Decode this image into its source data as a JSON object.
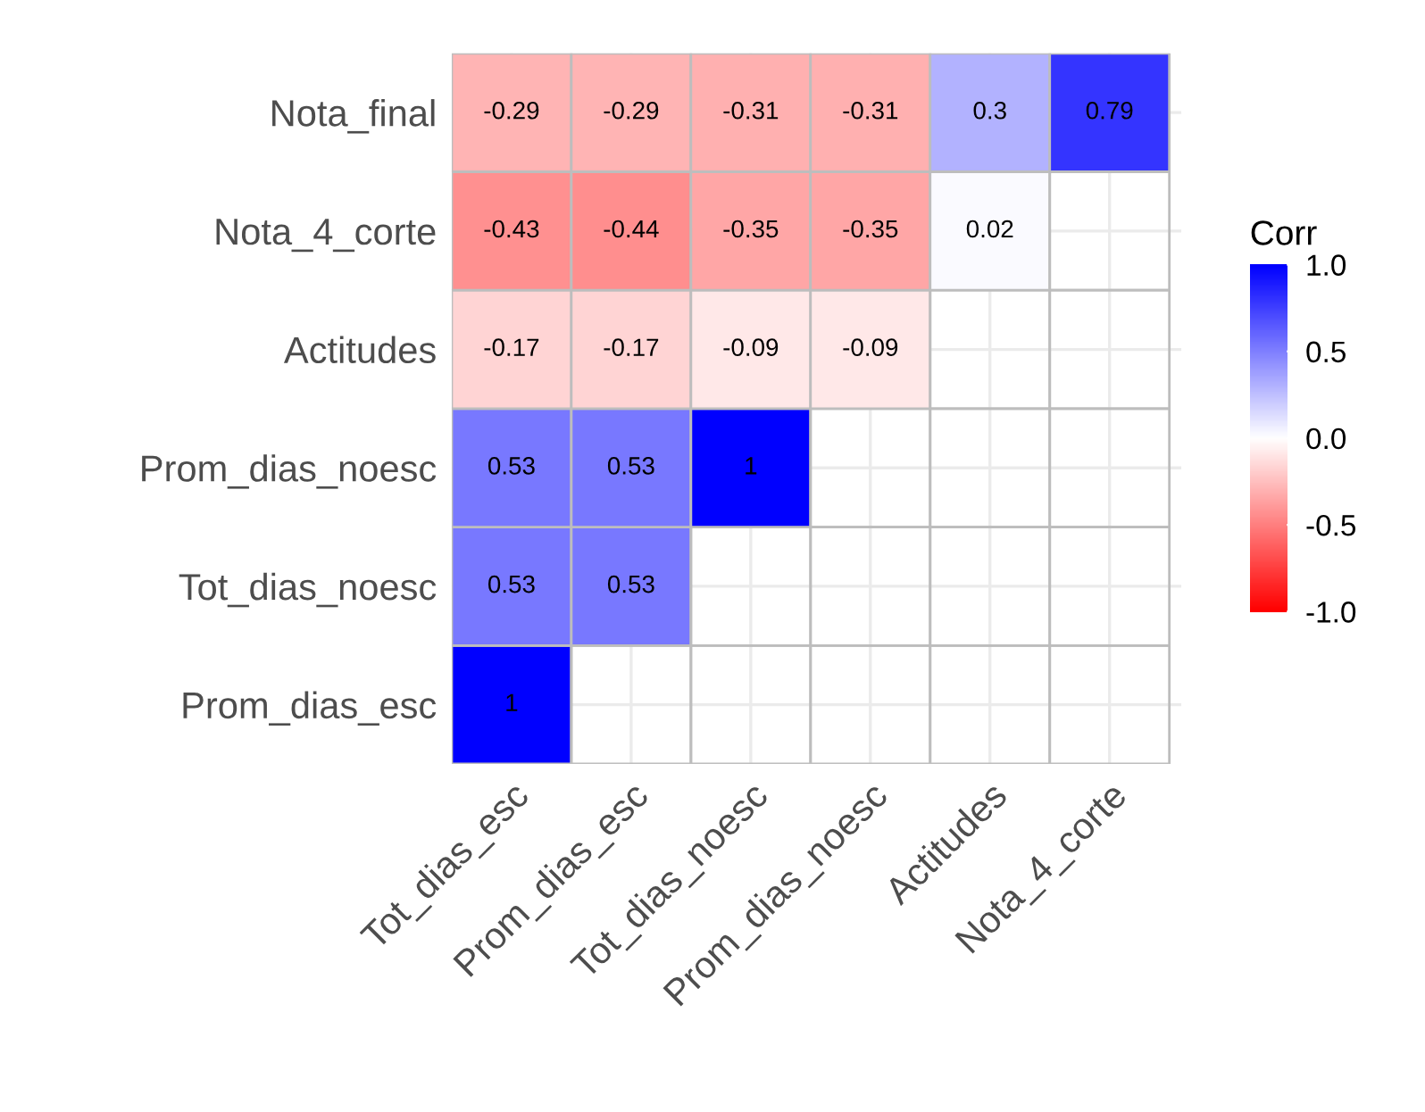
{
  "chart_data": {
    "type": "heatmap",
    "clabel": "Corr",
    "categories": [
      "Tot_dias_esc",
      "Prom_dias_esc",
      "Tot_dias_noesc",
      "Prom_dias_noesc",
      "Actitudes",
      "Nota_4_corte"
    ],
    "y_categories": [
      "Nota_final",
      "Nota_4_corte",
      "Actitudes",
      "Prom_dias_noesc",
      "Tot_dias_noesc",
      "Prom_dias_esc"
    ],
    "cells": [
      [
        -0.29,
        -0.29,
        -0.31,
        -0.31,
        0.3,
        0.79
      ],
      [
        -0.43,
        -0.44,
        -0.35,
        -0.35,
        0.02,
        null
      ],
      [
        -0.17,
        -0.17,
        -0.09,
        -0.09,
        null,
        null
      ],
      [
        0.53,
        0.53,
        1,
        null,
        null,
        null
      ],
      [
        0.53,
        0.53,
        null,
        null,
        null,
        null
      ],
      [
        1,
        null,
        null,
        null,
        null,
        null
      ]
    ],
    "clim": [
      -1,
      1
    ],
    "cticks": [
      {
        "value": -1,
        "label": "-1.0"
      },
      {
        "value": -0.5,
        "label": "-0.5"
      },
      {
        "value": 0,
        "label": "0.0"
      },
      {
        "value": 0.5,
        "label": "0.5"
      },
      {
        "value": 1,
        "label": "1.0"
      }
    ],
    "data_labels": true,
    "grid": true
  }
}
